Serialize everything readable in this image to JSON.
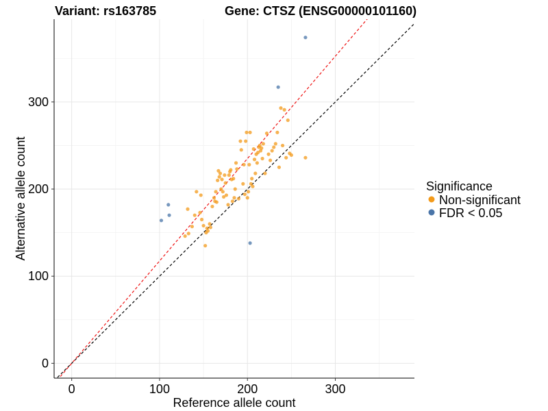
{
  "chart_data": {
    "type": "scatter",
    "title_left": "Variant: rs163785",
    "title_right": "Gene: CTSZ (ENSG00000101160)",
    "xlabel": "Reference allele count",
    "ylabel": "Alternative allele count",
    "xlim": [
      -20,
      390
    ],
    "ylim": [
      -17,
      395
    ],
    "x_ticks": [
      0,
      100,
      200,
      300
    ],
    "y_ticks": [
      0,
      100,
      200,
      300
    ],
    "x_minor": [
      50,
      150,
      250,
      350
    ],
    "y_minor": [
      50,
      150,
      250,
      350
    ],
    "grid": true,
    "reference_lines": [
      {
        "name": "identity",
        "slope": 1.0,
        "color": "#000000"
      },
      {
        "name": "fit",
        "slope": 1.175,
        "color": "#ee1111"
      }
    ],
    "legend": {
      "title": "Significance",
      "position": "right",
      "entries": [
        {
          "label": "Non-significant",
          "color": "#f39a1a"
        },
        {
          "label": "FDR < 0.05",
          "color": "#4a75a8"
        }
      ]
    },
    "series": [
      {
        "name": "Non-significant",
        "color": "#f39a1a",
        "points": [
          [
            129,
            146
          ],
          [
            133,
            149
          ],
          [
            132,
            177
          ],
          [
            137,
            157
          ],
          [
            140,
            170
          ],
          [
            142,
            197
          ],
          [
            147,
            193
          ],
          [
            146,
            173
          ],
          [
            148,
            165
          ],
          [
            150,
            158
          ],
          [
            152,
            135
          ],
          [
            153,
            150
          ],
          [
            154,
            155
          ],
          [
            155,
            152
          ],
          [
            157,
            160
          ],
          [
            158,
            156
          ],
          [
            160,
            180
          ],
          [
            162,
            190
          ],
          [
            163,
            186
          ],
          [
            164,
            197
          ],
          [
            165,
            185
          ],
          [
            166,
            210
          ],
          [
            167,
            221
          ],
          [
            168,
            214
          ],
          [
            169,
            218
          ],
          [
            170,
            200
          ],
          [
            171,
            211
          ],
          [
            172,
            197
          ],
          [
            173,
            191
          ],
          [
            174,
            216
          ],
          [
            175,
            207
          ],
          [
            176,
            193
          ],
          [
            178,
            182
          ],
          [
            179,
            216
          ],
          [
            180,
            220
          ],
          [
            181,
            222
          ],
          [
            182,
            211
          ],
          [
            183,
            186
          ],
          [
            184,
            212
          ],
          [
            185,
            190
          ],
          [
            186,
            200
          ],
          [
            187,
            230
          ],
          [
            188,
            223
          ],
          [
            190,
            189
          ],
          [
            192,
            255
          ],
          [
            193,
            245
          ],
          [
            195,
            206
          ],
          [
            196,
            228
          ],
          [
            197,
            194
          ],
          [
            198,
            255
          ],
          [
            199,
            265
          ],
          [
            200,
            190
          ],
          [
            201,
            197
          ],
          [
            202,
            228
          ],
          [
            203,
            265
          ],
          [
            204,
            206
          ],
          [
            205,
            212
          ],
          [
            206,
            203
          ],
          [
            207,
            246
          ],
          [
            208,
            234
          ],
          [
            209,
            218
          ],
          [
            210,
            240
          ],
          [
            211,
            230
          ],
          [
            212,
            242
          ],
          [
            213,
            248
          ],
          [
            214,
            250
          ],
          [
            215,
            244
          ],
          [
            216,
            247
          ],
          [
            217,
            235
          ],
          [
            218,
            252
          ],
          [
            220,
            218
          ],
          [
            222,
            264
          ],
          [
            224,
            240
          ],
          [
            226,
            233
          ],
          [
            228,
            244
          ],
          [
            230,
            248
          ],
          [
            232,
            252
          ],
          [
            234,
            265
          ],
          [
            236,
            225
          ],
          [
            238,
            293
          ],
          [
            240,
            250
          ],
          [
            242,
            291
          ],
          [
            244,
            236
          ],
          [
            246,
            279
          ],
          [
            248,
            241
          ],
          [
            250,
            239
          ],
          [
            266,
            236
          ]
        ]
      },
      {
        "name": "FDR < 0.05",
        "color": "#4a75a8",
        "points": [
          [
            102,
            164
          ],
          [
            110,
            182
          ],
          [
            111,
            170
          ],
          [
            203,
            138
          ],
          [
            235,
            317
          ],
          [
            266,
            374
          ]
        ]
      }
    ]
  }
}
